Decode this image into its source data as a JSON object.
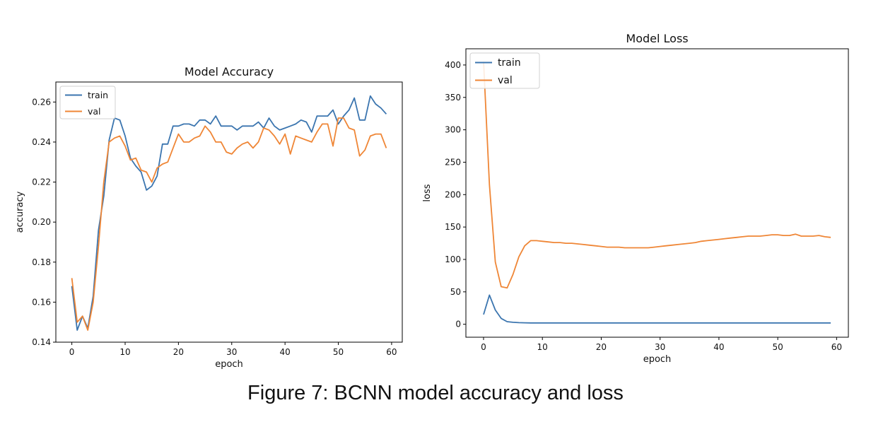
{
  "caption": "Figure 7: BCNN model accuracy and loss",
  "colors": {
    "train": "#3b75af",
    "val": "#ef8636",
    "axis": "#000000"
  },
  "chart_data": [
    {
      "type": "line",
      "title": "Model Accuracy",
      "xlabel": "epoch",
      "ylabel": "accuracy",
      "xlim": [
        -3,
        62
      ],
      "ylim": [
        0.14,
        0.27
      ],
      "xticks": [
        0,
        10,
        20,
        30,
        40,
        50,
        60
      ],
      "yticks": [
        0.14,
        0.16,
        0.18,
        0.2,
        0.22,
        0.24,
        0.26
      ],
      "ytick_labels": [
        "0.14",
        "0.16",
        "0.18",
        "0.20",
        "0.22",
        "0.24",
        "0.26"
      ],
      "grid": false,
      "legend": "upper left",
      "x": [
        0,
        1,
        2,
        3,
        4,
        5,
        6,
        7,
        8,
        9,
        10,
        11,
        12,
        13,
        14,
        15,
        16,
        17,
        18,
        19,
        20,
        21,
        22,
        23,
        24,
        25,
        26,
        27,
        28,
        29,
        30,
        31,
        32,
        33,
        34,
        35,
        36,
        37,
        38,
        39,
        40,
        41,
        42,
        43,
        44,
        45,
        46,
        47,
        48,
        49,
        50,
        51,
        52,
        53,
        54,
        55,
        56,
        57,
        58,
        59
      ],
      "series": [
        {
          "name": "train",
          "values": [
            0.168,
            0.146,
            0.153,
            0.147,
            0.163,
            0.196,
            0.213,
            0.241,
            0.252,
            0.251,
            0.243,
            0.232,
            0.228,
            0.225,
            0.216,
            0.218,
            0.223,
            0.239,
            0.239,
            0.248,
            0.248,
            0.249,
            0.249,
            0.248,
            0.251,
            0.251,
            0.249,
            0.253,
            0.248,
            0.248,
            0.248,
            0.246,
            0.248,
            0.248,
            0.248,
            0.25,
            0.247,
            0.252,
            0.248,
            0.246,
            0.247,
            0.248,
            0.249,
            0.251,
            0.25,
            0.245,
            0.253,
            0.253,
            0.253,
            0.256,
            0.249,
            0.253,
            0.256,
            0.262,
            0.251,
            0.251,
            0.263,
            0.259,
            0.257,
            0.254
          ]
        },
        {
          "name": "val",
          "values": [
            0.172,
            0.15,
            0.153,
            0.146,
            0.16,
            0.188,
            0.22,
            0.24,
            0.242,
            0.243,
            0.238,
            0.231,
            0.232,
            0.226,
            0.225,
            0.22,
            0.227,
            0.229,
            0.23,
            0.237,
            0.244,
            0.24,
            0.24,
            0.242,
            0.243,
            0.248,
            0.245,
            0.24,
            0.24,
            0.235,
            0.234,
            0.237,
            0.239,
            0.24,
            0.237,
            0.24,
            0.247,
            0.246,
            0.243,
            0.239,
            0.244,
            0.234,
            0.243,
            0.242,
            0.241,
            0.24,
            0.245,
            0.249,
            0.249,
            0.238,
            0.252,
            0.252,
            0.247,
            0.246,
            0.233,
            0.236,
            0.243,
            0.244,
            0.244,
            0.237
          ]
        }
      ]
    },
    {
      "type": "line",
      "title": "Model Loss",
      "xlabel": "epoch",
      "ylabel": "loss",
      "xlim": [
        -3,
        62
      ],
      "ylim": [
        -20,
        425
      ],
      "xticks": [
        0,
        10,
        20,
        30,
        40,
        50,
        60
      ],
      "yticks": [
        0,
        50,
        100,
        150,
        200,
        250,
        300,
        350,
        400
      ],
      "ytick_labels": [
        "0",
        "50",
        "100",
        "150",
        "200",
        "250",
        "300",
        "350",
        "400"
      ],
      "grid": false,
      "legend": "upper left",
      "x": [
        0,
        1,
        2,
        3,
        4,
        5,
        6,
        7,
        8,
        9,
        10,
        11,
        12,
        13,
        14,
        15,
        16,
        17,
        18,
        19,
        20,
        21,
        22,
        23,
        24,
        25,
        26,
        27,
        28,
        29,
        30,
        31,
        32,
        33,
        34,
        35,
        36,
        37,
        38,
        39,
        40,
        41,
        42,
        43,
        44,
        45,
        46,
        47,
        48,
        49,
        50,
        51,
        52,
        53,
        54,
        55,
        56,
        57,
        58,
        59
      ],
      "series": [
        {
          "name": "train",
          "values": [
            15,
            45,
            22,
            9,
            4,
            3,
            2.5,
            2.2,
            2,
            2,
            2,
            2,
            2,
            2,
            2,
            2,
            2,
            2,
            2,
            2,
            2,
            2,
            2,
            2,
            2,
            2,
            2,
            2,
            2,
            2,
            2,
            2,
            2,
            2,
            2,
            2,
            2,
            2,
            2,
            2,
            2,
            2,
            2,
            2,
            2,
            2,
            2,
            2,
            2,
            2,
            2,
            2,
            2,
            2,
            2,
            2,
            2,
            2,
            2,
            2
          ]
        },
        {
          "name": "val",
          "values": [
            405,
            215,
            96,
            58,
            56,
            77,
            104,
            121,
            129,
            129,
            128,
            127,
            126,
            126,
            125,
            125,
            124,
            123,
            122,
            121,
            120,
            119,
            119,
            119,
            118,
            118,
            118,
            118,
            118,
            119,
            120,
            121,
            122,
            123,
            124,
            125,
            126,
            128,
            129,
            130,
            131,
            132,
            133,
            134,
            135,
            136,
            136,
            136,
            137,
            138,
            138,
            137,
            137,
            139,
            136,
            136,
            136,
            137,
            135,
            134
          ]
        }
      ]
    }
  ]
}
